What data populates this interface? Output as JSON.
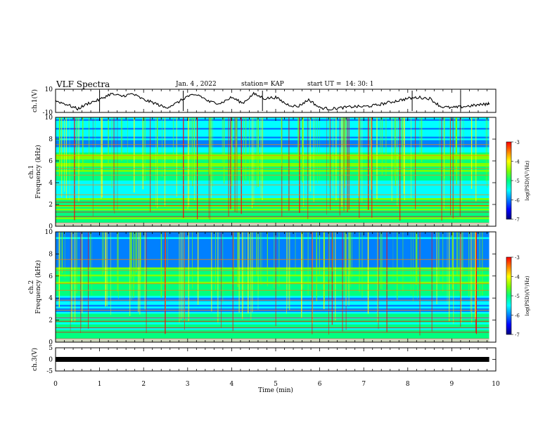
{
  "header": {
    "title": "VLF Spectra",
    "date": "Jan. 4 , 2022",
    "station": "station= KAP",
    "start": "start UT =  14: 30: 1"
  },
  "colors": {
    "spectrum": [
      "#00007f",
      "#0000ff",
      "#0080ff",
      "#00ffff",
      "#00ff80",
      "#80ff00",
      "#ffff00",
      "#ff8000",
      "#ff0000",
      "#ffc8c8"
    ],
    "trace": "#000000"
  },
  "chart_data": [
    {
      "type": "line",
      "ylabel": "ch.1(V)",
      "ylim": [
        -10,
        10
      ],
      "yticks": [
        "10",
        "-10"
      ],
      "xlim": [
        0,
        10
      ],
      "x": [
        0,
        0.25,
        0.5,
        0.75,
        1.0,
        1.25,
        1.5,
        1.75,
        2.0,
        2.25,
        2.5,
        2.75,
        3.0,
        3.25,
        3.5,
        3.75,
        4.0,
        4.25,
        4.5,
        4.75,
        5.0,
        5.25,
        5.5,
        5.75,
        6.0,
        6.25,
        6.5,
        6.75,
        7.0,
        7.25,
        7.5,
        7.75,
        8.0,
        8.25,
        8.5,
        8.75,
        9.0,
        9.25,
        9.5,
        9.75,
        9.85
      ],
      "y": [
        0,
        -3,
        -7,
        -2,
        1,
        6,
        4,
        6,
        1,
        -2,
        -6,
        -2,
        4,
        5,
        -1,
        -2,
        3,
        -2,
        6,
        2,
        3,
        -3,
        -5,
        1,
        -6,
        -7,
        -6,
        -5,
        -5,
        -4,
        -2,
        0,
        2,
        3,
        2,
        -5,
        -6,
        -5,
        -4,
        -3,
        -2
      ]
    },
    {
      "type": "heatmap",
      "ylabel": "ch.1\nFrequency (kHz)",
      "ylim": [
        0,
        10
      ],
      "yticks": [
        "0",
        "2",
        "4",
        "6",
        "8",
        "10"
      ],
      "xlim": [
        0,
        9.85
      ],
      "colorbar": {
        "label": "log(PSD)(V²/Hz)",
        "range": [
          -7,
          -3
        ],
        "ticks": [
          "-3",
          "-4",
          "-5",
          "-6",
          "-7"
        ]
      }
    },
    {
      "type": "heatmap",
      "ylabel": "ch.2\nFrequency (kHz)",
      "ylim": [
        0,
        10
      ],
      "yticks": [
        "0",
        "2",
        "4",
        "6",
        "8",
        "10"
      ],
      "xlim": [
        0,
        9.85
      ],
      "colorbar": {
        "label": "log(PSD)(V²/Hz)",
        "range": [
          -7,
          -3
        ],
        "ticks": [
          "-3",
          "-4",
          "-5",
          "-6",
          "-7"
        ]
      }
    },
    {
      "type": "line",
      "ylabel": "ch.3(V)",
      "ylim": [
        -5,
        5
      ],
      "yticks": [
        "5",
        "0",
        "-5"
      ],
      "xlim": [
        0,
        10
      ],
      "x": [
        0,
        9.85
      ],
      "y": [
        0,
        0
      ]
    }
  ],
  "xaxis": {
    "label": "Time (min)",
    "ticks": [
      "0",
      "1",
      "2",
      "3",
      "4",
      "5",
      "6",
      "7",
      "8",
      "9",
      "10"
    ]
  }
}
